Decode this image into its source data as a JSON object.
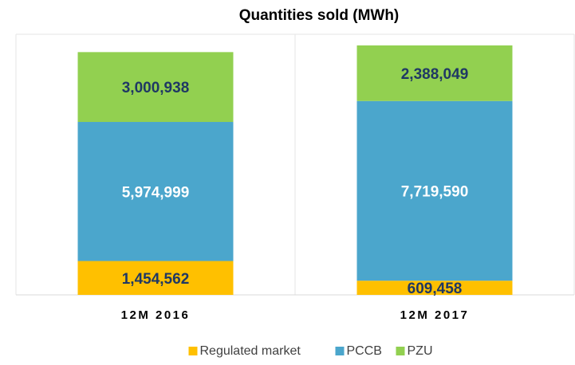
{
  "chart_data": {
    "type": "stacked_bar",
    "title": "Quantities  sold (MWh)",
    "categories": [
      "12M 2016",
      "12M 2017"
    ],
    "series": [
      {
        "name": "Regulated market",
        "color": "#ffc000",
        "label_color": "#1f3864",
        "values": [
          1454562,
          609458
        ],
        "value_labels": [
          "1,454,562",
          "609,458"
        ]
      },
      {
        "name": "PCCB",
        "color": "#4ba6cc",
        "label_color": "#ffffff",
        "values": [
          5974999,
          7719590
        ],
        "value_labels": [
          "5,974,999",
          "7,719,590"
        ]
      },
      {
        "name": "PZU",
        "color": "#92d050",
        "label_color": "#1f3864",
        "values": [
          3000938,
          2388049
        ],
        "value_labels": [
          "3,000,938",
          "2,388,049"
        ]
      }
    ],
    "legend": "bottom"
  }
}
